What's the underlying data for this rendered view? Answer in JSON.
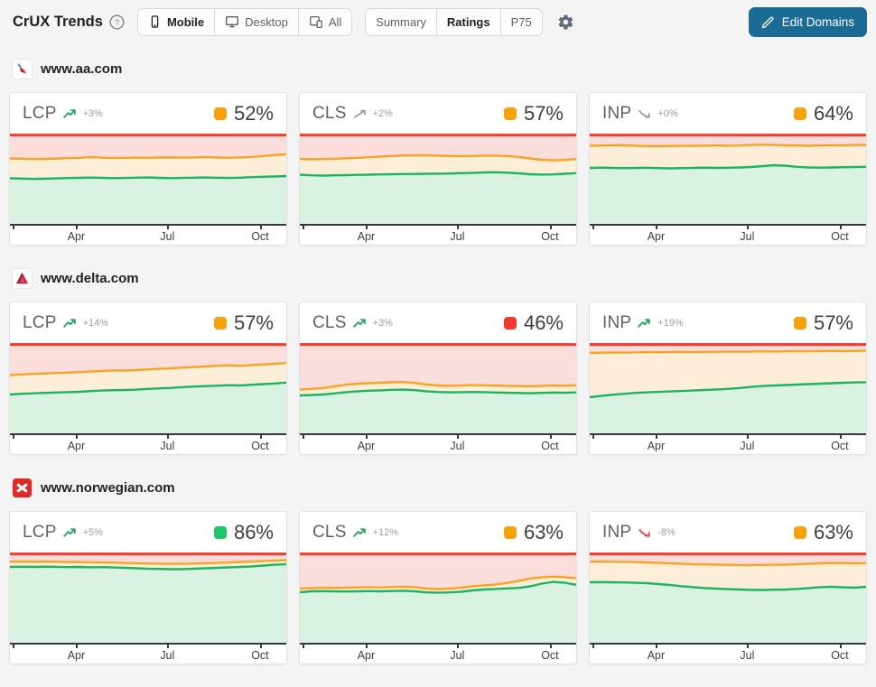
{
  "header": {
    "title": "CrUX Trends",
    "accent_color": "#1a6b96",
    "device_toggle": [
      {
        "label": "Mobile",
        "icon": "phone-icon",
        "selected": true
      },
      {
        "label": "Desktop",
        "icon": "monitor-icon",
        "selected": false
      },
      {
        "label": "All",
        "icon": "devices-icon",
        "selected": false
      }
    ],
    "view_toggle": [
      {
        "label": "Summary",
        "selected": false
      },
      {
        "label": "Ratings",
        "selected": true
      },
      {
        "label": "P75",
        "selected": false
      }
    ],
    "edit_domains_label": "Edit Domains"
  },
  "sections": [
    {
      "domain": "www.aa.com",
      "favicon": "american-airlines-favicon"
    },
    {
      "domain": "www.delta.com",
      "favicon": "delta-favicon"
    },
    {
      "domain": "www.norwegian.com",
      "favicon": "norwegian-favicon"
    }
  ],
  "chart_data": {
    "type": "area",
    "description": "Stacked rating areas per metric: good (green) up to good_line, needs-improvement (cream) up to good_plus_ni_line, poor (pink) up to 100. Red line fixed at 100.",
    "x_ticks": [
      "Apr",
      "Jul",
      "Oct"
    ],
    "x_tick_positions_pct": [
      24,
      57,
      90.5
    ],
    "y_range": [
      0,
      100
    ],
    "colors": {
      "good_line": "#1db45f",
      "good_fill": "#d9f2e2",
      "ni_line": "#f7a325",
      "ni_fill": "#fdeeda",
      "poor_line": "#f23d2e",
      "poor_fill": "#fbdedb",
      "badge": {
        "green": "#1dc468",
        "orange": "#f9a109",
        "red": "#f23b2e"
      },
      "trend": {
        "green": "#1ea35c",
        "grey": "#98a0a6",
        "red": "#e5484d"
      }
    },
    "charts": [
      {
        "domain": "www.aa.com",
        "metric": "LCP",
        "value": "52%",
        "rating": "orange",
        "trend": {
          "label": "+3%",
          "direction": "up",
          "color": "green"
        },
        "good_line": [
          50.5,
          50.2,
          49.8,
          50.0,
          50.4,
          50.8,
          51.0,
          51.3,
          51.0,
          50.7,
          50.9,
          51.2,
          51.4,
          51.0,
          50.7,
          50.9,
          51.2,
          51.4,
          51.1,
          50.9,
          51.2,
          51.8,
          52.2,
          52.6,
          53.0
        ],
        "good_plus_ni_line": [
          72.5,
          72.2,
          71.8,
          72.0,
          72.3,
          72.8,
          73.2,
          74.0,
          73.3,
          72.9,
          73.1,
          73.4,
          73.2,
          73.5,
          73.7,
          73.4,
          73.6,
          73.9,
          73.5,
          73.2,
          73.6,
          74.2,
          75.2,
          76.3,
          77.0
        ]
      },
      {
        "domain": "www.aa.com",
        "metric": "CLS",
        "value": "57%",
        "rating": "orange",
        "trend": {
          "label": "+2%",
          "direction": "up-straight",
          "color": "grey"
        },
        "good_line": [
          54.5,
          53.8,
          53.5,
          53.8,
          54.0,
          54.3,
          54.5,
          54.8,
          55.0,
          55.2,
          55.3,
          55.5,
          55.6,
          55.8,
          56.2,
          56.6,
          57.0,
          57.2,
          56.8,
          56.0,
          55.0,
          54.6,
          54.8,
          55.5,
          56.2
        ],
        "good_plus_ni_line": [
          72.0,
          71.5,
          71.8,
          72.2,
          72.6,
          73.2,
          73.8,
          74.5,
          75.2,
          75.8,
          76.0,
          75.8,
          75.5,
          75.2,
          75.0,
          75.2,
          75.5,
          75.6,
          75.2,
          74.2,
          72.5,
          71.0,
          70.4,
          70.8,
          71.8
        ]
      },
      {
        "domain": "www.aa.com",
        "metric": "INP",
        "value": "64%",
        "rating": "orange",
        "trend": {
          "label": "+0%",
          "direction": "down",
          "color": "grey"
        },
        "good_line": [
          62.0,
          62.3,
          62.0,
          61.8,
          62.0,
          62.2,
          61.8,
          61.5,
          61.8,
          62.0,
          62.3,
          62.0,
          62.2,
          62.5,
          63.0,
          64.0,
          65.0,
          64.5,
          63.2,
          62.5,
          62.3,
          62.5,
          62.8,
          63.0,
          63.2
        ],
        "good_plus_ni_line": [
          86.5,
          86.8,
          87.2,
          87.0,
          86.5,
          86.2,
          86.0,
          86.3,
          86.6,
          86.4,
          86.6,
          86.9,
          86.6,
          86.8,
          87.3,
          87.8,
          87.4,
          87.0,
          86.8,
          86.6,
          86.9,
          87.2,
          87.0,
          87.3,
          87.5
        ]
      },
      {
        "domain": "www.delta.com",
        "metric": "LCP",
        "value": "57%",
        "rating": "orange",
        "trend": {
          "label": "+14%",
          "direction": "up",
          "color": "green"
        },
        "good_line": [
          43.0,
          43.8,
          44.3,
          44.8,
          45.2,
          45.6,
          46.0,
          46.8,
          47.4,
          47.8,
          48.0,
          48.4,
          49.2,
          49.8,
          50.3,
          51.2,
          51.8,
          52.3,
          52.8,
          53.3,
          53.0,
          53.8,
          54.5,
          55.2,
          56.2
        ],
        "good_plus_ni_line": [
          64.5,
          65.2,
          65.8,
          66.3,
          66.8,
          67.2,
          67.8,
          68.5,
          69.0,
          69.6,
          69.4,
          70.0,
          70.8,
          71.4,
          72.0,
          72.8,
          73.4,
          74.0,
          74.8,
          75.4,
          74.8,
          75.6,
          76.3,
          77.0,
          77.8
        ]
      },
      {
        "domain": "www.delta.com",
        "metric": "CLS",
        "value": "46%",
        "rating": "red",
        "trend": {
          "label": "+3%",
          "direction": "up",
          "color": "green"
        },
        "good_line": [
          42.0,
          42.4,
          43.0,
          44.2,
          45.6,
          46.6,
          47.2,
          47.6,
          48.2,
          48.4,
          47.8,
          46.6,
          45.8,
          45.4,
          45.6,
          45.8,
          45.6,
          45.2,
          44.9,
          44.7,
          44.4,
          44.8,
          45.2,
          44.9,
          45.3
        ],
        "good_plus_ni_line": [
          48.5,
          49.2,
          50.2,
          52.0,
          53.8,
          55.0,
          55.6,
          56.0,
          56.6,
          56.8,
          55.8,
          54.0,
          53.0,
          52.6,
          53.0,
          53.4,
          53.2,
          52.9,
          52.6,
          52.4,
          52.1,
          52.6,
          53.1,
          52.8,
          53.3
        ]
      },
      {
        "domain": "www.delta.com",
        "metric": "INP",
        "value": "57%",
        "rating": "orange",
        "trend": {
          "label": "+19%",
          "direction": "up",
          "color": "green"
        },
        "good_line": [
          40.0,
          41.5,
          42.8,
          43.8,
          44.8,
          45.4,
          45.9,
          46.4,
          46.9,
          47.4,
          48.0,
          48.6,
          49.2,
          50.2,
          51.4,
          52.4,
          53.0,
          53.5,
          54.0,
          54.5,
          55.0,
          55.5,
          56.0,
          56.4,
          56.6
        ],
        "good_plus_ni_line": [
          89.0,
          89.3,
          89.6,
          89.4,
          89.7,
          89.9,
          89.7,
          90.0,
          90.2,
          90.0,
          90.2,
          90.3,
          90.4,
          90.3,
          90.6,
          90.8,
          90.6,
          90.8,
          91.0,
          90.9,
          91.1,
          91.3,
          91.1,
          91.3,
          91.4
        ]
      },
      {
        "domain": "www.norwegian.com",
        "metric": "LCP",
        "value": "86%",
        "rating": "green",
        "trend": {
          "label": "+5%",
          "direction": "up",
          "color": "green"
        },
        "good_line": [
          84.0,
          84.2,
          84.0,
          84.3,
          84.1,
          83.8,
          84.0,
          83.6,
          83.8,
          83.4,
          83.0,
          82.5,
          82.0,
          81.8,
          81.5,
          81.6,
          82.0,
          82.5,
          83.0,
          83.5,
          84.0,
          84.6,
          85.5,
          86.4,
          87.0
        ],
        "good_plus_ni_line": [
          89.8,
          90.0,
          89.8,
          90.0,
          89.8,
          89.5,
          89.6,
          89.2,
          89.0,
          88.7,
          88.4,
          88.1,
          87.8,
          87.6,
          87.4,
          87.5,
          87.8,
          88.2,
          88.6,
          89.0,
          89.5,
          90.0,
          90.6,
          91.1,
          91.5
        ]
      },
      {
        "domain": "www.norwegian.com",
        "metric": "CLS",
        "value": "63%",
        "rating": "orange",
        "trend": {
          "label": "+12%",
          "direction": "up",
          "color": "green"
        },
        "good_line": [
          56.0,
          57.0,
          57.2,
          57.0,
          56.8,
          57.0,
          57.3,
          57.0,
          57.3,
          57.6,
          57.0,
          55.8,
          55.4,
          55.8,
          56.5,
          58.0,
          59.0,
          59.6,
          60.2,
          60.8,
          62.5,
          65.5,
          67.5,
          66.5,
          64.3
        ],
        "good_plus_ni_line": [
          60.0,
          60.6,
          61.0,
          60.8,
          61.0,
          61.3,
          61.6,
          61.3,
          61.7,
          62.0,
          61.4,
          60.0,
          59.5,
          60.0,
          61.0,
          62.6,
          63.6,
          64.6,
          66.2,
          68.6,
          71.2,
          72.6,
          73.2,
          72.7,
          71.5
        ]
      },
      {
        "domain": "www.norwegian.com",
        "metric": "INP",
        "value": "63%",
        "rating": "orange",
        "trend": {
          "label": "-8%",
          "direction": "down",
          "color": "red"
        },
        "good_line": [
          67.0,
          67.2,
          67.0,
          66.8,
          66.4,
          66.0,
          65.0,
          64.0,
          62.6,
          61.6,
          60.6,
          60.0,
          59.4,
          59.0,
          58.6,
          58.5,
          58.8,
          59.0,
          59.6,
          60.6,
          61.6,
          62.0,
          61.4,
          61.0,
          62.0
        ],
        "good_plus_ni_line": [
          90.0,
          90.0,
          89.8,
          89.6,
          89.5,
          89.0,
          88.5,
          88.0,
          87.5,
          87.0,
          86.8,
          86.5,
          86.3,
          86.0,
          86.0,
          86.2,
          86.4,
          86.5,
          87.0,
          87.5,
          88.0,
          88.5,
          88.3,
          88.0,
          88.2
        ]
      }
    ]
  }
}
